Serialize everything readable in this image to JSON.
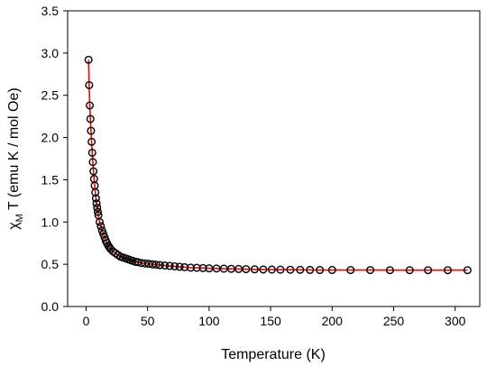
{
  "chart_data": {
    "type": "scatter",
    "title": "",
    "xlabel": "Temperature (K)",
    "ylabel": {
      "prefix": "χ",
      "subscript": "M",
      "suffix": " T (emu K / mol Oe)"
    },
    "xlim": [
      -15,
      320
    ],
    "ylim": [
      0,
      3.5
    ],
    "xticks": [
      0,
      50,
      100,
      150,
      200,
      250,
      300
    ],
    "yticks": [
      0.0,
      0.5,
      1.0,
      1.5,
      2.0,
      2.5,
      3.0,
      3.5
    ],
    "xtick_labels": [
      "0",
      "50",
      "100",
      "150",
      "200",
      "250",
      "300"
    ],
    "ytick_labels": [
      "0.0",
      "0.5",
      "1.0",
      "1.5",
      "2.0",
      "2.5",
      "3.0",
      "3.5"
    ],
    "grid": false,
    "legend": false,
    "series": [
      {
        "style": "open-circle-markers",
        "color": "#000000",
        "x": [
          2,
          2.5,
          3,
          3.5,
          4,
          4.5,
          5,
          5.5,
          6,
          6.5,
          7,
          7.5,
          8,
          8.5,
          9,
          9.5,
          10,
          11,
          12,
          13,
          14,
          15,
          16,
          17,
          18,
          19,
          20,
          22,
          24,
          26,
          28,
          30,
          32,
          34,
          36,
          38,
          40,
          42,
          45,
          48,
          51,
          54,
          57,
          60,
          64,
          68,
          72,
          76,
          80,
          85,
          90,
          95,
          100,
          106,
          112,
          118,
          124,
          130,
          137,
          144,
          151,
          158,
          166,
          174,
          182,
          190,
          200,
          215,
          231,
          247,
          263,
          278,
          294,
          310
        ],
        "y": [
          2.92,
          2.62,
          2.38,
          2.22,
          2.08,
          1.95,
          1.82,
          1.71,
          1.6,
          1.51,
          1.43,
          1.35,
          1.28,
          1.22,
          1.17,
          1.12,
          1.08,
          1.0,
          0.95,
          0.9,
          0.86,
          0.82,
          0.78,
          0.75,
          0.72,
          0.7,
          0.68,
          0.65,
          0.63,
          0.61,
          0.59,
          0.58,
          0.57,
          0.56,
          0.55,
          0.54,
          0.53,
          0.525,
          0.515,
          0.51,
          0.505,
          0.5,
          0.495,
          0.49,
          0.485,
          0.48,
          0.475,
          0.47,
          0.465,
          0.46,
          0.458,
          0.455,
          0.452,
          0.45,
          0.448,
          0.446,
          0.444,
          0.442,
          0.44,
          0.438,
          0.437,
          0.436,
          0.435,
          0.434,
          0.433,
          0.432,
          0.432,
          0.431,
          0.431,
          0.43,
          0.43,
          0.43,
          0.43,
          0.43
        ]
      },
      {
        "style": "line",
        "color": "#ff0000",
        "x": [
          2,
          2.5,
          3,
          3.5,
          4,
          4.5,
          5,
          5.5,
          6,
          6.5,
          7,
          7.5,
          8,
          8.5,
          9,
          9.5,
          10,
          11,
          12,
          13,
          14,
          15,
          16,
          17,
          18,
          19,
          20,
          22,
          24,
          26,
          28,
          30,
          32,
          34,
          36,
          38,
          40,
          42,
          45,
          48,
          51,
          54,
          57,
          60,
          64,
          68,
          72,
          76,
          80,
          85,
          90,
          95,
          100,
          106,
          112,
          118,
          124,
          130,
          137,
          144,
          151,
          158,
          166,
          174,
          182,
          190,
          200,
          215,
          231,
          247,
          263,
          278,
          294,
          310
        ],
        "y": [
          2.92,
          2.62,
          2.38,
          2.22,
          2.08,
          1.95,
          1.82,
          1.71,
          1.6,
          1.51,
          1.43,
          1.35,
          1.28,
          1.22,
          1.17,
          1.12,
          1.08,
          1.0,
          0.95,
          0.9,
          0.86,
          0.82,
          0.78,
          0.75,
          0.72,
          0.7,
          0.68,
          0.65,
          0.63,
          0.61,
          0.59,
          0.58,
          0.57,
          0.56,
          0.55,
          0.54,
          0.53,
          0.525,
          0.515,
          0.51,
          0.505,
          0.5,
          0.495,
          0.49,
          0.485,
          0.48,
          0.475,
          0.47,
          0.465,
          0.46,
          0.458,
          0.455,
          0.452,
          0.45,
          0.448,
          0.446,
          0.444,
          0.442,
          0.44,
          0.438,
          0.437,
          0.436,
          0.435,
          0.434,
          0.433,
          0.432,
          0.432,
          0.431,
          0.431,
          0.43,
          0.43,
          0.43,
          0.43,
          0.43
        ]
      }
    ]
  }
}
